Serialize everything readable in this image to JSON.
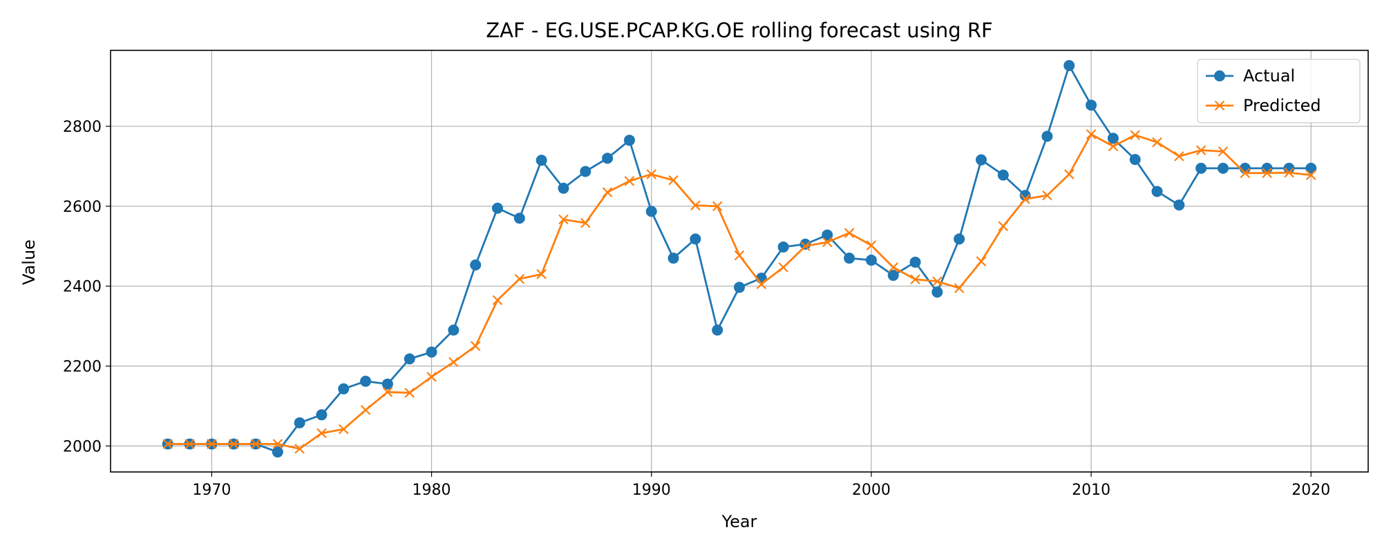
{
  "chart_data": {
    "type": "line",
    "title": "ZAF - EG.USE.PCAP.KG.OE rolling forecast using RF",
    "xlabel": "Year",
    "ylabel": "Value",
    "xlim": [
      1965.4,
      2022.6
    ],
    "ylim": [
      1935,
      2990
    ],
    "xticks": [
      1970,
      1980,
      1990,
      2000,
      2010,
      2020
    ],
    "yticks": [
      2000,
      2200,
      2400,
      2600,
      2800
    ],
    "grid": true,
    "legend_position": "upper right",
    "x": [
      1968,
      1969,
      1970,
      1971,
      1972,
      1973,
      1974,
      1975,
      1976,
      1977,
      1978,
      1979,
      1980,
      1981,
      1982,
      1983,
      1984,
      1985,
      1986,
      1987,
      1988,
      1989,
      1990,
      1991,
      1992,
      1993,
      1994,
      1995,
      1996,
      1997,
      1998,
      1999,
      2000,
      2001,
      2002,
      2003,
      2004,
      2005,
      2006,
      2007,
      2008,
      2009,
      2010,
      2011,
      2012,
      2013,
      2014,
      2015,
      2016,
      2017,
      2018,
      2019,
      2020
    ],
    "series": [
      {
        "name": "Actual",
        "color": "#1f77b4",
        "marker": "circle",
        "values": [
          2005,
          2005,
          2005,
          2005,
          2005,
          1985,
          2058,
          2078,
          2143,
          2162,
          2155,
          2218,
          2235,
          2290,
          2453,
          2595,
          2570,
          2715,
          2645,
          2687,
          2720,
          2765,
          2587,
          2470,
          2518,
          2290,
          2397,
          2420,
          2498,
          2505,
          2528,
          2470,
          2465,
          2427,
          2460,
          2385,
          2518,
          2716,
          2678,
          2627,
          2775,
          2952,
          2853,
          2770,
          2717,
          2637,
          2603,
          2695,
          2695,
          2695,
          2695,
          2695,
          2695
        ]
      },
      {
        "name": "Predicted",
        "color": "#ff7f0e",
        "marker": "x",
        "values": [
          2005,
          2005,
          2005,
          2005,
          2005,
          2005,
          1993,
          2032,
          2042,
          2090,
          2135,
          2133,
          2173,
          2210,
          2250,
          2365,
          2418,
          2430,
          2567,
          2558,
          2635,
          2663,
          2680,
          2665,
          2602,
          2600,
          2477,
          2405,
          2447,
          2500,
          2510,
          2533,
          2502,
          2447,
          2417,
          2412,
          2395,
          2462,
          2550,
          2618,
          2627,
          2680,
          2780,
          2750,
          2778,
          2760,
          2725,
          2740,
          2737,
          2683,
          2683,
          2684,
          2678
        ]
      }
    ]
  }
}
